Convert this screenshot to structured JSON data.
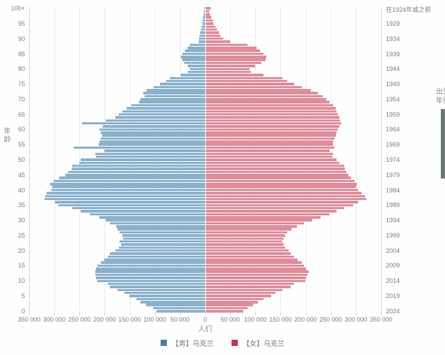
{
  "legend": {
    "male_label": "【男】乌克兰",
    "female_label": "【女】乌克兰"
  },
  "axes": {
    "age_title": "年龄",
    "birth_year_title_line1": "出生",
    "birth_year_title_line2": "年份",
    "people_label": "人们",
    "age_ticks": [
      "100+",
      "95",
      "90",
      "85",
      "80",
      "75",
      "70",
      "65",
      "60",
      "55",
      "50",
      "45",
      "40",
      "35",
      "30",
      "25",
      "20",
      "15",
      "10",
      "5",
      "0"
    ],
    "year_ticks": [
      "在1924年或之前",
      "1929",
      "1934",
      "1939",
      "1944",
      "1949",
      "1954",
      "1959",
      "1964",
      "1969",
      "1974",
      "1979",
      "1984",
      "1989",
      "1994",
      "1999",
      "2004",
      "2009",
      "2014",
      "2019",
      "2024"
    ],
    "x_ticks": [
      "350 000",
      "300 000",
      "250 000",
      "200 000",
      "150 000",
      "100 000",
      "50 000",
      "0",
      "50 000",
      "100 000",
      "150 000",
      "200 000",
      "250 000",
      "300 000",
      "350 000"
    ]
  },
  "colors": {
    "male_bar": "#8ab1cb",
    "female_bar": "#df8d9b",
    "male_legend": "#4d7e9d",
    "female_legend": "#bb3a56",
    "gridline": "#ebebeb",
    "axis_line": "#d6d6d6",
    "tick_text": "#7d7d7d",
    "scrollbar": "#687873"
  },
  "chart_data": {
    "type": "bar",
    "subtype": "population-pyramid",
    "title": "",
    "xlabel": "人们",
    "ylabel_left": "年龄",
    "ylabel_right": "出生年份",
    "x_max": 350000,
    "x_tick_step": 50000,
    "grid": true,
    "legend_position": "bottom",
    "ages_top_label": "100+",
    "ages": "0 to 100 by 1, age 100 shown as 100+, birth years 2024 down to 在1924年或之前",
    "series": [
      {
        "name": "【男】乌克兰",
        "side": "left",
        "color": "#8ab1cb",
        "legend_color": "#4d7e9d",
        "values_by_age_0_to_100": [
          97000,
          104000,
          118000,
          128000,
          137000,
          151000,
          161000,
          175000,
          189000,
          193000,
          215000,
          217000,
          218000,
          218000,
          217000,
          215000,
          208000,
          200000,
          193000,
          189000,
          179000,
          172000,
          168000,
          170000,
          163000,
          165000,
          170000,
          174000,
          177000,
          189000,
          198000,
          210000,
          229000,
          247000,
          264000,
          292000,
          299000,
          320000,
          318000,
          315000,
          306000,
          304000,
          308000,
          301000,
          290000,
          278000,
          273000,
          266000,
          264000,
          250000,
          247000,
          217000,
          218000,
          200000,
          262000,
          212000,
          210000,
          207000,
          205000,
          207000,
          210000,
          203000,
          245000,
          198000,
          179000,
          172000,
          165000,
          156000,
          146000,
          132000,
          128000,
          120000,
          123000,
          116000,
          102000,
          90000,
          78000,
          71000,
          48000,
          34000,
          30000,
          35000,
          41000,
          46000,
          48000,
          45000,
          40000,
          34000,
          30000,
          13000,
          12000,
          11000,
          9000,
          8000,
          7000,
          6000,
          5000,
          4000,
          3000,
          3000,
          2000
        ]
      },
      {
        "name": "【女】乌克兰",
        "side": "right",
        "color": "#df8d9b",
        "legend_color": "#bb3a56",
        "values_by_age_0_to_100": [
          76000,
          84000,
          95000,
          105000,
          116000,
          131000,
          140000,
          154000,
          170000,
          177000,
          199000,
          201000,
          203000,
          206000,
          201000,
          196000,
          192000,
          184000,
          177000,
          170000,
          166000,
          159000,
          156000,
          154000,
          156000,
          159000,
          163000,
          172000,
          182000,
          196000,
          213000,
          229000,
          248000,
          262000,
          276000,
          295000,
          304000,
          321000,
          318000,
          311000,
          304000,
          300000,
          302000,
          297000,
          290000,
          285000,
          281000,
          278000,
          276000,
          267000,
          262000,
          253000,
          255000,
          248000,
          257000,
          255000,
          255000,
          257000,
          260000,
          262000,
          264000,
          267000,
          271000,
          269000,
          267000,
          264000,
          262000,
          260000,
          255000,
          248000,
          241000,
          234000,
          224000,
          210000,
          192000,
          177000,
          163000,
          154000,
          116000,
          91000,
          88000,
          100000,
          112000,
          120000,
          122000,
          116000,
          109000,
          103000,
          85000,
          50000,
          36000,
          30000,
          27000,
          23000,
          21000,
          17000,
          15000,
          12000,
          9000,
          8000,
          11000
        ]
      }
    ]
  }
}
